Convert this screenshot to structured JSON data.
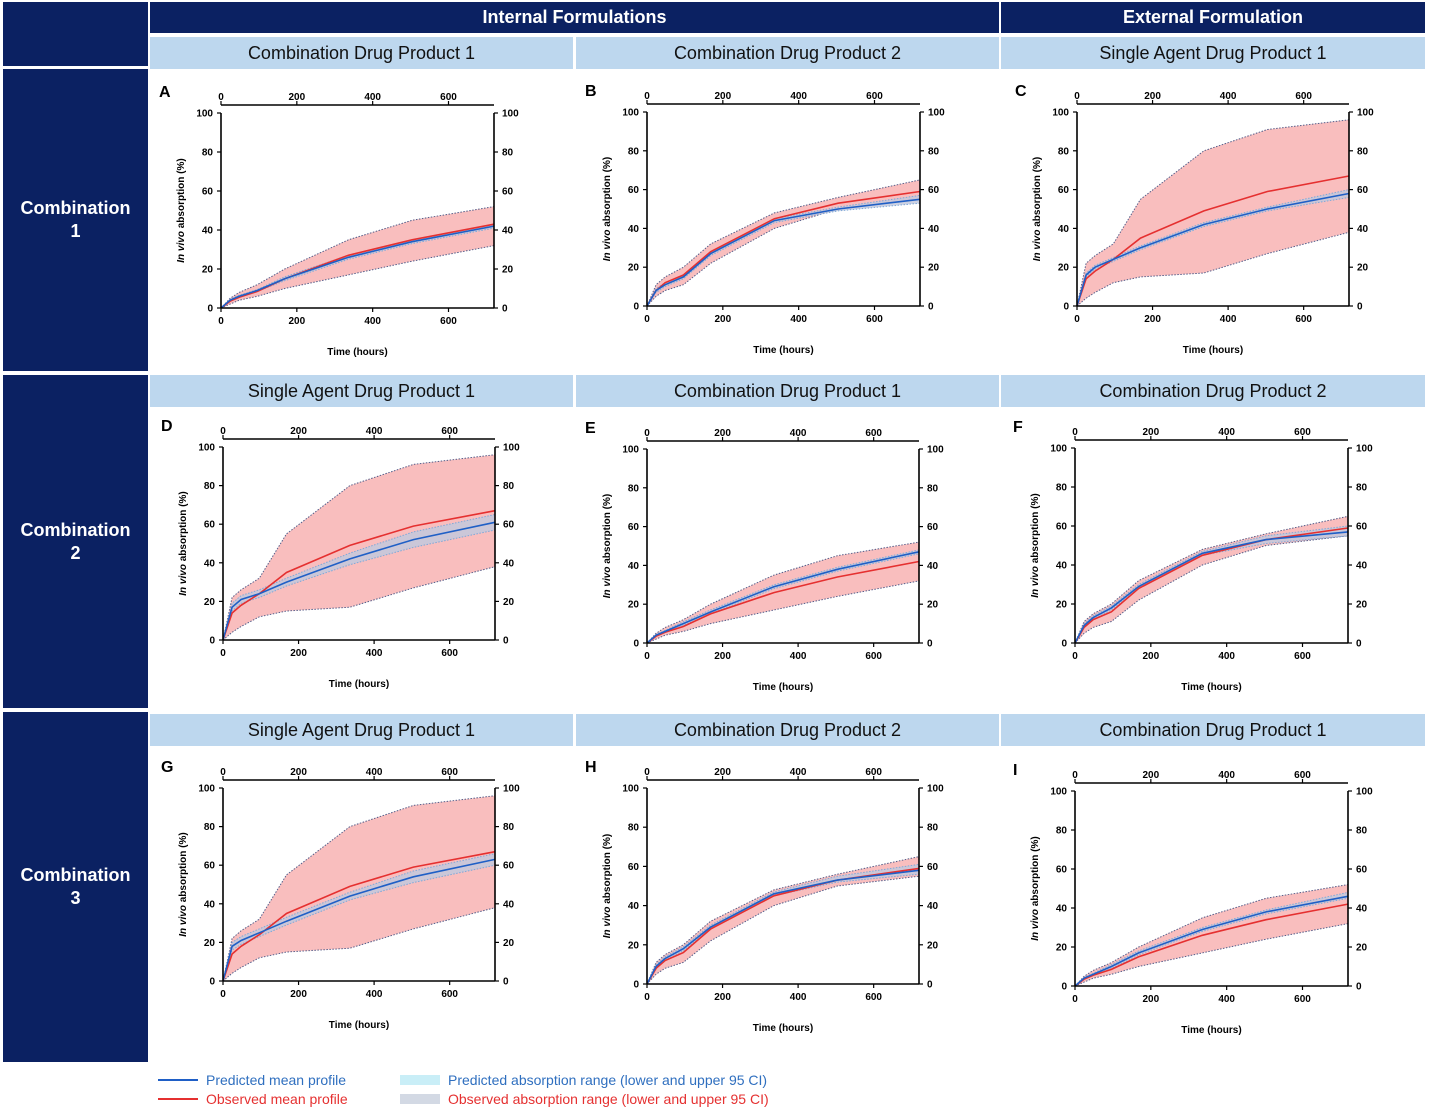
{
  "headers": {
    "internal": "Internal Formulations",
    "external": "External Formulation"
  },
  "rows": [
    {
      "label_lines": [
        "Combination",
        "1"
      ],
      "columns": [
        "Combination Drug Product 1",
        "Combination Drug Product 2",
        "Single Agent Drug Product 1"
      ]
    },
    {
      "label_lines": [
        "Combination",
        "2"
      ],
      "columns": [
        "Single Agent Drug Product 1",
        "Combination Drug Product 1",
        "Combination Drug Product 2"
      ]
    },
    {
      "label_lines": [
        "Combination",
        "3"
      ],
      "columns": [
        "Single Agent Drug Product 1",
        "Combination Drug Product 2",
        "Combination Drug Product 1"
      ]
    }
  ],
  "legend": {
    "predicted_mean": "Predicted mean profile",
    "observed_mean": "Observed mean profile",
    "predicted_range": "Predicted absorption range (lower and upper 95 CI)",
    "observed_range": "Observed absorption range (lower and upper 95 CI)"
  },
  "colors": {
    "navy": "#0b2162",
    "light_blue": "#bdd7ee",
    "predicted_mean": "#1f5fc6",
    "observed_mean": "#e53030",
    "observed_band": "#f7a8a8",
    "predicted_band": "#cfeff6",
    "band_edge": "#555e8a",
    "legend_pred_text": "#2f6fbf",
    "legend_obs_text": "#e53030",
    "legend_pred_box": "#c9eef7",
    "legend_obs_box": "#d3d9e4"
  },
  "chart_data": [
    {
      "panel": "A",
      "type": "line",
      "xlabel": "Time (hours)",
      "ylabel": "In vivo absorption (%)",
      "xlim": [
        0,
        720
      ],
      "ylim": [
        0,
        100
      ],
      "xticks": [
        0,
        200,
        400,
        600
      ],
      "yticks": [
        0,
        20,
        40,
        60,
        80,
        100
      ],
      "x": [
        0,
        24,
        48,
        96,
        168,
        336,
        504,
        720
      ],
      "series": [
        {
          "name": "Predicted mean profile",
          "values": [
            0,
            4,
            6,
            9,
            15,
            26,
            34,
            42
          ]
        },
        {
          "name": "Observed mean profile",
          "values": [
            0,
            3.5,
            5.5,
            8.5,
            15,
            27,
            35,
            43
          ]
        },
        {
          "name": "Observed absorption range (lower and upper 95 CI)",
          "lower": [
            0,
            2,
            4,
            6,
            10,
            17,
            24,
            32
          ],
          "upper": [
            0,
            5,
            8,
            12,
            20,
            35,
            45,
            52
          ]
        },
        {
          "name": "Predicted absorption range (lower and upper 95 CI)",
          "lower": [
            0,
            3.5,
            5.5,
            8.5,
            14,
            25,
            33,
            41
          ],
          "upper": [
            0,
            4.5,
            6.5,
            9.5,
            16,
            27,
            35,
            43
          ]
        }
      ]
    },
    {
      "panel": "B",
      "type": "line",
      "xlabel": "Time (hours)",
      "ylabel": "In vivo absorption (%)",
      "xlim": [
        0,
        720
      ],
      "ylim": [
        0,
        100
      ],
      "xticks": [
        0,
        200,
        400,
        600
      ],
      "yticks": [
        0,
        20,
        40,
        60,
        80,
        100
      ],
      "x": [
        0,
        24,
        48,
        96,
        168,
        336,
        504,
        720
      ],
      "series": [
        {
          "name": "Predicted mean profile",
          "values": [
            0,
            8,
            11,
            15,
            27,
            44,
            50,
            55
          ]
        },
        {
          "name": "Observed mean profile",
          "values": [
            0,
            8,
            12,
            16,
            28,
            45,
            53,
            59
          ]
        },
        {
          "name": "Observed absorption range (lower and upper 95 CI)",
          "lower": [
            0,
            5,
            8,
            11,
            22,
            40,
            50,
            55
          ],
          "upper": [
            0,
            11,
            15,
            20,
            32,
            48,
            56,
            65
          ]
        },
        {
          "name": "Predicted absorption range (lower and upper 95 CI)",
          "lower": [
            0,
            7,
            10,
            14,
            26,
            43,
            49,
            53
          ],
          "upper": [
            0,
            9,
            12,
            16,
            28,
            45,
            51,
            57
          ]
        }
      ]
    },
    {
      "panel": "C",
      "type": "line",
      "xlabel": "Time (hours)",
      "ylabel": "In vivo absorption (%)",
      "xlim": [
        0,
        720
      ],
      "ylim": [
        0,
        100
      ],
      "xticks": [
        0,
        200,
        400,
        600
      ],
      "yticks": [
        0,
        20,
        40,
        60,
        80,
        100
      ],
      "x": [
        0,
        24,
        48,
        96,
        168,
        336,
        504,
        720
      ],
      "series": [
        {
          "name": "Predicted mean profile",
          "values": [
            0,
            16,
            20,
            24,
            30,
            42,
            50,
            58
          ]
        },
        {
          "name": "Observed mean profile",
          "values": [
            0,
            14,
            18,
            24,
            35,
            49,
            59,
            67
          ]
        },
        {
          "name": "Observed absorption range (lower and upper 95 CI)",
          "lower": [
            0,
            4,
            7,
            12,
            15,
            17,
            27,
            38
          ],
          "upper": [
            0,
            22,
            26,
            32,
            55,
            80,
            91,
            96
          ]
        },
        {
          "name": "Predicted absorption range (lower and upper 95 CI)",
          "lower": [
            0,
            15,
            19,
            23,
            29,
            41,
            49,
            56
          ],
          "upper": [
            0,
            17,
            21,
            25,
            31,
            43,
            51,
            60
          ]
        }
      ]
    },
    {
      "panel": "D",
      "type": "line",
      "xlabel": "Time (hours)",
      "ylabel": "In vivo absorption (%)",
      "xlim": [
        0,
        720
      ],
      "ylim": [
        0,
        100
      ],
      "xticks": [
        0,
        200,
        400,
        600
      ],
      "yticks": [
        0,
        20,
        40,
        60,
        80,
        100
      ],
      "x": [
        0,
        24,
        48,
        96,
        168,
        336,
        504,
        720
      ],
      "series": [
        {
          "name": "Predicted mean profile",
          "values": [
            0,
            17,
            21,
            24,
            30,
            42,
            52,
            61
          ]
        },
        {
          "name": "Observed mean profile",
          "values": [
            0,
            14,
            18,
            24,
            35,
            49,
            59,
            67
          ]
        },
        {
          "name": "Observed absorption range (lower and upper 95 CI)",
          "lower": [
            0,
            4,
            7,
            12,
            15,
            17,
            27,
            38
          ],
          "upper": [
            0,
            22,
            26,
            32,
            55,
            80,
            91,
            96
          ]
        },
        {
          "name": "Predicted absorption range (lower and upper 95 CI)",
          "lower": [
            0,
            15,
            19,
            22,
            28,
            39,
            48,
            57
          ],
          "upper": [
            0,
            19,
            23,
            26,
            32,
            45,
            56,
            65
          ]
        }
      ]
    },
    {
      "panel": "E",
      "type": "line",
      "xlabel": "Time (hours)",
      "ylabel": "In vivo absorption (%)",
      "xlim": [
        0,
        720
      ],
      "ylim": [
        0,
        100
      ],
      "xticks": [
        0,
        200,
        400,
        600
      ],
      "yticks": [
        0,
        20,
        40,
        60,
        80,
        100
      ],
      "x": [
        0,
        24,
        48,
        96,
        168,
        336,
        504,
        720
      ],
      "series": [
        {
          "name": "Predicted mean profile",
          "values": [
            0,
            4,
            6,
            10,
            16,
            29,
            38,
            47
          ]
        },
        {
          "name": "Observed mean profile",
          "values": [
            0,
            3.5,
            5.5,
            8.5,
            15,
            26,
            34,
            42
          ]
        },
        {
          "name": "Observed absorption range (lower and upper 95 CI)",
          "lower": [
            0,
            2,
            4,
            6,
            10,
            17,
            24,
            32
          ],
          "upper": [
            0,
            5,
            8,
            12,
            20,
            35,
            45,
            52
          ]
        },
        {
          "name": "Predicted absorption range (lower and upper 95 CI)",
          "lower": [
            0,
            3.5,
            5.5,
            9,
            15,
            28,
            37,
            46
          ],
          "upper": [
            0,
            4.5,
            6.5,
            11,
            17,
            30,
            39,
            48
          ]
        }
      ]
    },
    {
      "panel": "F",
      "type": "line",
      "xlabel": "Time (hours)",
      "ylabel": "In vivo absorption (%)",
      "xlim": [
        0,
        720
      ],
      "ylim": [
        0,
        100
      ],
      "xticks": [
        0,
        200,
        400,
        600
      ],
      "yticks": [
        0,
        20,
        40,
        60,
        80,
        100
      ],
      "x": [
        0,
        24,
        48,
        96,
        168,
        336,
        504,
        720
      ],
      "series": [
        {
          "name": "Predicted mean profile",
          "values": [
            0,
            9,
            13,
            18,
            29,
            46,
            53,
            57
          ]
        },
        {
          "name": "Observed mean profile",
          "values": [
            0,
            8,
            12,
            16,
            28,
            45,
            53,
            59
          ]
        },
        {
          "name": "Observed absorption range (lower and upper 95 CI)",
          "lower": [
            0,
            5,
            8,
            11,
            22,
            40,
            50,
            55
          ],
          "upper": [
            0,
            11,
            15,
            20,
            32,
            48,
            56,
            65
          ]
        },
        {
          "name": "Predicted absorption range (lower and upper 95 CI)",
          "lower": [
            0,
            8,
            12,
            17,
            28,
            45,
            51,
            55
          ],
          "upper": [
            0,
            10,
            14,
            19,
            30,
            47,
            55,
            60
          ]
        }
      ]
    },
    {
      "panel": "G",
      "type": "line",
      "xlabel": "Time (hours)",
      "ylabel": "In vivo absorption (%)",
      "xlim": [
        0,
        720
      ],
      "ylim": [
        0,
        100
      ],
      "xticks": [
        0,
        200,
        400,
        600
      ],
      "yticks": [
        0,
        20,
        40,
        60,
        80,
        100
      ],
      "x": [
        0,
        24,
        48,
        96,
        168,
        336,
        504,
        720
      ],
      "series": [
        {
          "name": "Predicted mean profile",
          "values": [
            0,
            18,
            21,
            25,
            31,
            44,
            54,
            63
          ]
        },
        {
          "name": "Observed mean profile",
          "values": [
            0,
            14,
            18,
            24,
            35,
            49,
            59,
            67
          ]
        },
        {
          "name": "Observed absorption range (lower and upper 95 CI)",
          "lower": [
            0,
            4,
            7,
            12,
            15,
            17,
            27,
            38
          ],
          "upper": [
            0,
            22,
            26,
            32,
            55,
            80,
            91,
            96
          ]
        },
        {
          "name": "Predicted absorption range (lower and upper 95 CI)",
          "lower": [
            0,
            16,
            19,
            23,
            29,
            42,
            51,
            60
          ],
          "upper": [
            0,
            20,
            23,
            27,
            33,
            46,
            57,
            66
          ]
        }
      ]
    },
    {
      "panel": "H",
      "type": "line",
      "xlabel": "Time (hours)",
      "ylabel": "In vivo absorption (%)",
      "xlim": [
        0,
        720
      ],
      "ylim": [
        0,
        100
      ],
      "xticks": [
        0,
        200,
        400,
        600
      ],
      "yticks": [
        0,
        20,
        40,
        60,
        80,
        100
      ],
      "x": [
        0,
        24,
        48,
        96,
        168,
        336,
        504,
        720
      ],
      "series": [
        {
          "name": "Predicted mean profile",
          "values": [
            0,
            9,
            13,
            18,
            29,
            46,
            53,
            58
          ]
        },
        {
          "name": "Observed mean profile",
          "values": [
            0,
            8,
            12,
            16,
            28,
            45,
            53,
            59
          ]
        },
        {
          "name": "Observed absorption range (lower and upper 95 CI)",
          "lower": [
            0,
            5,
            8,
            11,
            22,
            40,
            50,
            55
          ],
          "upper": [
            0,
            11,
            15,
            20,
            32,
            48,
            56,
            65
          ]
        },
        {
          "name": "Predicted absorption range (lower and upper 95 CI)",
          "lower": [
            0,
            8,
            12,
            17,
            28,
            45,
            52,
            56
          ],
          "upper": [
            0,
            10,
            14,
            19,
            30,
            47,
            55,
            61
          ]
        }
      ]
    },
    {
      "panel": "I",
      "type": "line",
      "xlabel": "Time (hours)",
      "ylabel": "In vivo absorption (%)",
      "xlim": [
        0,
        720
      ],
      "ylim": [
        0,
        100
      ],
      "xticks": [
        0,
        200,
        400,
        600
      ],
      "yticks": [
        0,
        20,
        40,
        60,
        80,
        100
      ],
      "x": [
        0,
        24,
        48,
        96,
        168,
        336,
        504,
        720
      ],
      "series": [
        {
          "name": "Predicted mean profile",
          "values": [
            0,
            4,
            6,
            10,
            17,
            29,
            38,
            46
          ]
        },
        {
          "name": "Observed mean profile",
          "values": [
            0,
            3.5,
            5.5,
            8.5,
            15,
            26,
            34,
            42
          ]
        },
        {
          "name": "Observed absorption range (lower and upper 95 CI)",
          "lower": [
            0,
            2,
            4,
            6,
            10,
            17,
            24,
            32
          ],
          "upper": [
            0,
            5,
            8,
            12,
            20,
            35,
            45,
            52
          ]
        },
        {
          "name": "Predicted absorption range (lower and upper 95 CI)",
          "lower": [
            0,
            3.5,
            5.5,
            9,
            16,
            28,
            37,
            45
          ],
          "upper": [
            0,
            4.5,
            6.5,
            11,
            18,
            30,
            39,
            48
          ]
        }
      ]
    }
  ]
}
